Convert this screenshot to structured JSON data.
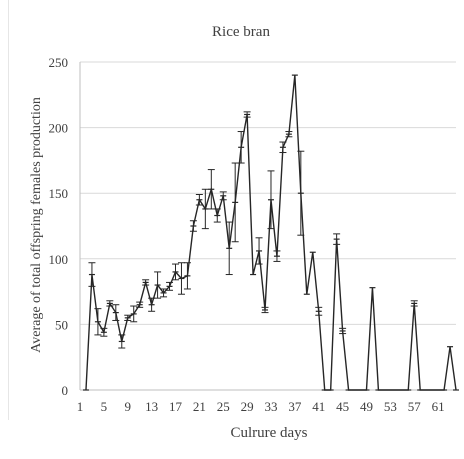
{
  "chart_data": {
    "type": "line",
    "title": "Rice bran",
    "xlabel": "Culrure days",
    "ylabel": "Average  of total offspring females production",
    "xlim": [
      1,
      64
    ],
    "ylim": [
      0,
      250
    ],
    "y_ticks": [
      0,
      50,
      100,
      150,
      200,
      250
    ],
    "x_ticks": [
      1,
      5,
      9,
      13,
      17,
      21,
      25,
      29,
      33,
      37,
      41,
      45,
      49,
      53,
      57,
      61
    ],
    "x_tick_labels": [
      "1",
      "5",
      "9",
      "13",
      "17",
      "21",
      "25",
      "29",
      "33",
      "37",
      "41",
      "45",
      "49",
      "53",
      "57",
      "61"
    ],
    "grid": "horizontal",
    "colors": {
      "line": "#262626",
      "grid": "#d9d9d9",
      "axis": "#bfbfbf",
      "text": "#404040"
    },
    "series": [
      {
        "x": [
          2,
          3,
          4,
          5,
          6,
          7,
          8,
          9,
          10,
          11,
          12,
          13,
          14,
          15,
          16,
          17,
          18,
          19,
          20,
          21,
          22,
          23,
          24,
          25,
          26,
          27,
          28,
          29,
          30,
          31,
          32,
          33,
          34,
          35,
          36,
          37,
          38,
          39,
          40,
          41,
          42,
          43,
          44,
          45,
          46,
          47,
          48,
          49,
          50,
          51,
          52,
          53,
          54,
          55,
          56,
          57,
          58,
          59,
          60,
          61,
          62,
          63,
          64
        ],
        "y": [
          0,
          88,
          52,
          44,
          66,
          59,
          37,
          55,
          58,
          65,
          82,
          65,
          80,
          74,
          79,
          90,
          85,
          87,
          125,
          145,
          138,
          153,
          133,
          148,
          108,
          143,
          185,
          210,
          88,
          106,
          61,
          145,
          102,
          185,
          195,
          240,
          150,
          73,
          105,
          60,
          0,
          0,
          115,
          45,
          0,
          0,
          0,
          0,
          78,
          0,
          0,
          0,
          0,
          0,
          0,
          66,
          0,
          0,
          0,
          0,
          0,
          33,
          0
        ],
        "err": [
          0,
          9,
          10,
          3,
          2,
          6,
          5,
          2,
          6,
          2,
          2,
          5,
          10,
          3,
          3,
          6,
          12,
          10,
          4,
          4,
          15,
          15,
          5,
          3,
          20,
          30,
          12,
          2,
          0,
          10,
          2,
          22,
          4,
          4,
          2,
          0,
          32,
          0,
          0,
          3,
          0,
          0,
          4,
          2,
          0,
          0,
          0,
          0,
          0,
          0,
          0,
          0,
          0,
          0,
          0,
          2,
          0,
          0,
          0,
          0,
          0,
          0,
          0
        ]
      }
    ]
  }
}
